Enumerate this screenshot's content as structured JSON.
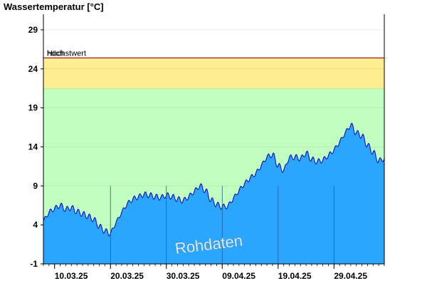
{
  "chart_data": {
    "type": "area",
    "ylabel": "Wassertemperatur [°C]",
    "ylim": [
      -1,
      31
    ],
    "yticks": [
      -1,
      4,
      9,
      14,
      19,
      24,
      29
    ],
    "x_start": "2025-03-08",
    "x_end": "2025-05-08",
    "xticks": [
      {
        "date": "2025-03-10",
        "label": "10.03.25"
      },
      {
        "date": "2025-03-20",
        "label": "20.03.25"
      },
      {
        "date": "2025-03-30",
        "label": "30.03.25"
      },
      {
        "date": "2025-04-09",
        "label": "09.04.25"
      },
      {
        "date": "2025-04-19",
        "label": "19.04.25"
      },
      {
        "date": "2025-04-29",
        "label": "29.04.25"
      }
    ],
    "bands": [
      {
        "name": "normal",
        "from": -1,
        "to": 21.5,
        "color": "#c0ffc0"
      },
      {
        "name": "hoch",
        "label": "hoch",
        "from": 21.5,
        "to": 25.4,
        "color": "#ffee90"
      }
    ],
    "thresholds": [
      {
        "label": "Höchstwert",
        "value": 25.4,
        "color": "#a00000"
      }
    ],
    "series": [
      {
        "color": "#2aa6ff",
        "line_color": "#0000c0",
        "points": [
          [
            "2025-03-08",
            4.5
          ],
          [
            "2025-03-09",
            5.6
          ],
          [
            "2025-03-10",
            6.1
          ],
          [
            "2025-03-11",
            6.5
          ],
          [
            "2025-03-12",
            6.0
          ],
          [
            "2025-03-13",
            6.2
          ],
          [
            "2025-03-14",
            5.7
          ],
          [
            "2025-03-15",
            5.4
          ],
          [
            "2025-03-16",
            5.1
          ],
          [
            "2025-03-17",
            4.7
          ],
          [
            "2025-03-18",
            3.8
          ],
          [
            "2025-03-19",
            3.2
          ],
          [
            "2025-03-20",
            2.9
          ],
          [
            "2025-03-21",
            4.3
          ],
          [
            "2025-03-22",
            5.6
          ],
          [
            "2025-03-23",
            6.7
          ],
          [
            "2025-03-24",
            7.3
          ],
          [
            "2025-03-25",
            7.6
          ],
          [
            "2025-03-26",
            7.9
          ],
          [
            "2025-03-27",
            7.8
          ],
          [
            "2025-03-28",
            7.6
          ],
          [
            "2025-03-29",
            7.5
          ],
          [
            "2025-03-30",
            7.8
          ],
          [
            "2025-03-31",
            7.6
          ],
          [
            "2025-04-01",
            7.3
          ],
          [
            "2025-04-02",
            7.1
          ],
          [
            "2025-04-03",
            7.6
          ],
          [
            "2025-04-04",
            8.3
          ],
          [
            "2025-04-05",
            9.0
          ],
          [
            "2025-04-06",
            8.4
          ],
          [
            "2025-04-07",
            7.2
          ],
          [
            "2025-04-08",
            6.6
          ],
          [
            "2025-04-09",
            6.3
          ],
          [
            "2025-04-10",
            6.4
          ],
          [
            "2025-04-11",
            7.4
          ],
          [
            "2025-04-12",
            8.4
          ],
          [
            "2025-04-13",
            9.3
          ],
          [
            "2025-04-14",
            10.0
          ],
          [
            "2025-04-15",
            10.6
          ],
          [
            "2025-04-16",
            11.6
          ],
          [
            "2025-04-17",
            12.7
          ],
          [
            "2025-04-18",
            13.0
          ],
          [
            "2025-04-19",
            11.6
          ],
          [
            "2025-04-20",
            11.0
          ],
          [
            "2025-04-21",
            12.6
          ],
          [
            "2025-04-22",
            12.7
          ],
          [
            "2025-04-23",
            12.5
          ],
          [
            "2025-04-24",
            13.2
          ],
          [
            "2025-04-25",
            12.4
          ],
          [
            "2025-04-26",
            12.1
          ],
          [
            "2025-04-27",
            12.3
          ],
          [
            "2025-04-28",
            12.9
          ],
          [
            "2025-04-29",
            13.6
          ],
          [
            "2025-04-30",
            14.6
          ],
          [
            "2025-05-01",
            15.8
          ],
          [
            "2025-05-02",
            16.8
          ],
          [
            "2025-05-03",
            15.8
          ],
          [
            "2025-05-04",
            15.4
          ],
          [
            "2025-05-05",
            14.2
          ],
          [
            "2025-05-06",
            13.3
          ],
          [
            "2025-05-07",
            12.2
          ],
          [
            "2025-05-08",
            12.5
          ]
        ]
      }
    ],
    "grid": {
      "x": false,
      "y": true
    },
    "annotation": "Rohdaten"
  }
}
